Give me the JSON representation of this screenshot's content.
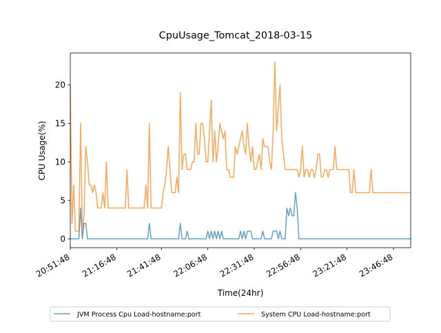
{
  "chart_data": {
    "type": "line",
    "title": "CpuUsage_Tomcat_2018-03-15",
    "xlabel": "Time(24hr)",
    "ylabel": "CPU Usage(%)",
    "xlim": [
      0,
      198
    ],
    "ylim": [
      -1.15,
      24.15
    ],
    "x_ticks": [
      {
        "pos": 0,
        "label": "20:51:48"
      },
      {
        "pos": 27,
        "label": "21:16:48"
      },
      {
        "pos": 53,
        "label": "21:41:48"
      },
      {
        "pos": 80,
        "label": "22:06:48"
      },
      {
        "pos": 107,
        "label": "22:31:48"
      },
      {
        "pos": 134,
        "label": "22:56:48"
      },
      {
        "pos": 161,
        "label": "23:21:48"
      },
      {
        "pos": 188,
        "label": "23:46:48"
      }
    ],
    "y_ticks": [
      0,
      5,
      10,
      15,
      20
    ],
    "grid": false,
    "legend_position": "bottom-center",
    "series": [
      {
        "name": "JVM Process Cpu Load-hostname:port",
        "color": "#1f77b4",
        "points": [
          [
            0,
            0
          ],
          [
            5,
            0
          ],
          [
            6,
            4
          ],
          [
            7,
            0
          ],
          [
            8,
            2
          ],
          [
            9,
            2
          ],
          [
            10,
            0
          ],
          [
            45,
            0
          ],
          [
            46,
            2
          ],
          [
            47,
            0
          ],
          [
            63,
            0
          ],
          [
            64,
            2
          ],
          [
            65,
            0
          ],
          [
            67,
            0
          ],
          [
            68,
            1
          ],
          [
            69,
            0
          ],
          [
            79,
            0
          ],
          [
            80,
            1
          ],
          [
            81,
            0
          ],
          [
            82,
            1
          ],
          [
            83,
            0
          ],
          [
            84,
            1
          ],
          [
            85,
            0
          ],
          [
            86,
            1
          ],
          [
            87,
            0
          ],
          [
            88,
            1
          ],
          [
            89,
            0
          ],
          [
            98,
            0
          ],
          [
            99,
            1
          ],
          [
            100,
            0
          ],
          [
            101,
            1
          ],
          [
            102,
            0
          ],
          [
            103,
            1
          ],
          [
            105,
            1
          ],
          [
            106,
            0
          ],
          [
            111,
            0
          ],
          [
            112,
            1
          ],
          [
            113,
            0
          ],
          [
            117,
            0
          ],
          [
            118,
            1
          ],
          [
            120,
            1
          ],
          [
            121,
            0
          ],
          [
            122,
            1
          ],
          [
            123,
            0
          ],
          [
            125,
            0
          ],
          [
            126,
            4
          ],
          [
            127,
            3
          ],
          [
            128,
            4
          ],
          [
            129,
            3
          ],
          [
            130,
            3
          ],
          [
            131,
            6
          ],
          [
            132,
            4
          ],
          [
            133,
            0
          ],
          [
            198,
            0
          ]
        ]
      },
      {
        "name": "System CPU Load-hostname:port",
        "color": "#ff7f0e",
        "points": [
          [
            0,
            20
          ],
          [
            1,
            2
          ],
          [
            2,
            7
          ],
          [
            3,
            1
          ],
          [
            5,
            1
          ],
          [
            6,
            15
          ],
          [
            7,
            1
          ],
          [
            8,
            3
          ],
          [
            9,
            12
          ],
          [
            10,
            10
          ],
          [
            11,
            7
          ],
          [
            12,
            7
          ],
          [
            13,
            6
          ],
          [
            14,
            7
          ],
          [
            15,
            6
          ],
          [
            16,
            4
          ],
          [
            18,
            4
          ],
          [
            19,
            6
          ],
          [
            20,
            4
          ],
          [
            21,
            10
          ],
          [
            22,
            4
          ],
          [
            32,
            4
          ],
          [
            33,
            9
          ],
          [
            34,
            4
          ],
          [
            43,
            4
          ],
          [
            44,
            7
          ],
          [
            45,
            4
          ],
          [
            46,
            15
          ],
          [
            47,
            4
          ],
          [
            53,
            4
          ],
          [
            54,
            6
          ],
          [
            55,
            7
          ],
          [
            56,
            9
          ],
          [
            57,
            12
          ],
          [
            58,
            9
          ],
          [
            59,
            6
          ],
          [
            61,
            6
          ],
          [
            62,
            8
          ],
          [
            63,
            6
          ],
          [
            64,
            19
          ],
          [
            65,
            9
          ],
          [
            66,
            11
          ],
          [
            67,
            11
          ],
          [
            68,
            9
          ],
          [
            70,
            9
          ],
          [
            71,
            10
          ],
          [
            72,
            10
          ],
          [
            73,
            15
          ],
          [
            74,
            11
          ],
          [
            75,
            11
          ],
          [
            76,
            15
          ],
          [
            77,
            15
          ],
          [
            78,
            13
          ],
          [
            79,
            10
          ],
          [
            80,
            10
          ],
          [
            81,
            14
          ],
          [
            82,
            18
          ],
          [
            83,
            10
          ],
          [
            84,
            14
          ],
          [
            85,
            10
          ],
          [
            86,
            12
          ],
          [
            87,
            15
          ],
          [
            88,
            14
          ],
          [
            89,
            13
          ],
          [
            90,
            14
          ],
          [
            91,
            9
          ],
          [
            92,
            9
          ],
          [
            93,
            8
          ],
          [
            95,
            8
          ],
          [
            96,
            12
          ],
          [
            97,
            11
          ],
          [
            98,
            12
          ],
          [
            99,
            13
          ],
          [
            100,
            14
          ],
          [
            101,
            12
          ],
          [
            102,
            11
          ],
          [
            103,
            15
          ],
          [
            104,
            12
          ],
          [
            105,
            10
          ],
          [
            106,
            12
          ],
          [
            107,
            9
          ],
          [
            108,
            9
          ],
          [
            109,
            10
          ],
          [
            110,
            11
          ],
          [
            111,
            9
          ],
          [
            112,
            13
          ],
          [
            113,
            12
          ],
          [
            114,
            12
          ],
          [
            115,
            12
          ],
          [
            116,
            10
          ],
          [
            117,
            9
          ],
          [
            118,
            14
          ],
          [
            119,
            23
          ],
          [
            120,
            14
          ],
          [
            121,
            17
          ],
          [
            122,
            20
          ],
          [
            123,
            13
          ],
          [
            124,
            11
          ],
          [
            125,
            9
          ],
          [
            132,
            9
          ],
          [
            133,
            8
          ],
          [
            134,
            9
          ],
          [
            135,
            12
          ],
          [
            136,
            8
          ],
          [
            137,
            9
          ],
          [
            138,
            9
          ],
          [
            139,
            8
          ],
          [
            140,
            9
          ],
          [
            141,
            9
          ],
          [
            142,
            8
          ],
          [
            143,
            9
          ],
          [
            144,
            11
          ],
          [
            145,
            11
          ],
          [
            146,
            8
          ],
          [
            147,
            8
          ],
          [
            148,
            9
          ],
          [
            149,
            9
          ],
          [
            150,
            8
          ],
          [
            151,
            9
          ],
          [
            153,
            9
          ],
          [
            154,
            12
          ],
          [
            155,
            9
          ],
          [
            162,
            9
          ],
          [
            163,
            6
          ],
          [
            164,
            6
          ],
          [
            165,
            9
          ],
          [
            166,
            6
          ],
          [
            174,
            6
          ],
          [
            175,
            9
          ],
          [
            176,
            6
          ],
          [
            198,
            6
          ]
        ]
      }
    ]
  }
}
